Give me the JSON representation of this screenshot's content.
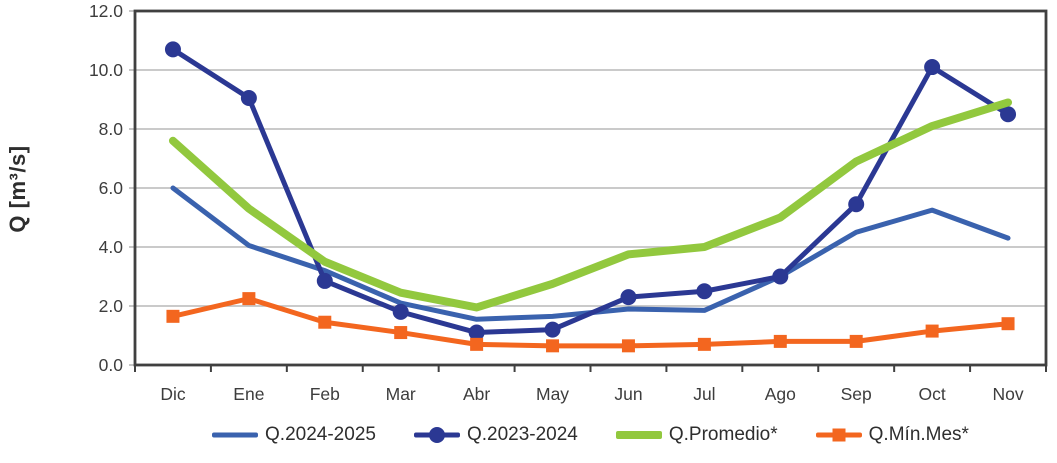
{
  "chart_data": {
    "type": "line",
    "title": "",
    "xlabel": "",
    "ylabel": "Q [m³/s]",
    "ylim": [
      0,
      12
    ],
    "ytick_step": 2,
    "ytick_decimals": 1,
    "grid": "horizontal",
    "legend_position": "bottom",
    "categories": [
      "Dic",
      "Ene",
      "Feb",
      "Mar",
      "Abr",
      "May",
      "Jun",
      "Jul",
      "Ago",
      "Sep",
      "Oct",
      "Nov"
    ],
    "series": [
      {
        "name": "Q.2024-2025",
        "color": "#3a62ae",
        "line_width": 5,
        "marker": "none",
        "values": [
          6.0,
          4.05,
          3.2,
          2.1,
          1.55,
          1.65,
          1.9,
          1.85,
          3.0,
          4.5,
          5.25,
          4.3
        ]
      },
      {
        "name": "Q.2023-2024",
        "color": "#2b3893",
        "line_width": 5,
        "marker": "circle",
        "values": [
          10.7,
          9.05,
          2.85,
          1.8,
          1.1,
          1.2,
          2.3,
          2.5,
          3.0,
          5.45,
          10.1,
          8.5
        ]
      },
      {
        "name": "Q.Promedio*",
        "color": "#92c83e",
        "line_width": 8,
        "marker": "none",
        "values": [
          7.6,
          5.3,
          3.5,
          2.45,
          1.95,
          2.75,
          3.75,
          4.0,
          5.0,
          6.9,
          8.1,
          8.9
        ]
      },
      {
        "name": "Q.Mín.Mes*",
        "color": "#f3661f",
        "line_width": 5,
        "marker": "square",
        "values": [
          1.65,
          2.25,
          1.45,
          1.1,
          0.7,
          0.65,
          0.65,
          0.7,
          0.8,
          0.8,
          1.15,
          1.4
        ]
      }
    ],
    "colors": {
      "grid": "#b8b8b8",
      "axis": "#404040",
      "text": "#3d3d3d",
      "background": "#ffffff"
    }
  }
}
